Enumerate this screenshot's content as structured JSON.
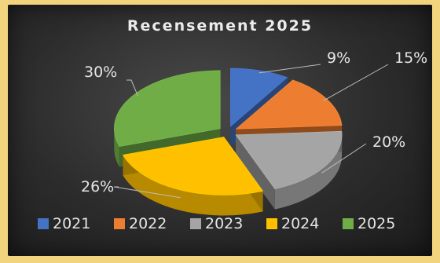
{
  "chart_data": {
    "type": "pie",
    "title": "Recensement  2025",
    "categories": [
      "2021",
      "2022",
      "2023",
      "2024",
      "2025"
    ],
    "values": [
      9,
      15,
      20,
      26,
      30
    ],
    "labels": [
      "9%",
      "15%",
      "20%",
      "26%",
      "30%"
    ],
    "colors": [
      "#4472c4",
      "#ed7d31",
      "#a5a5a5",
      "#ffc000",
      "#70ad47"
    ],
    "style": "3d-exploded",
    "legend_position": "bottom"
  }
}
